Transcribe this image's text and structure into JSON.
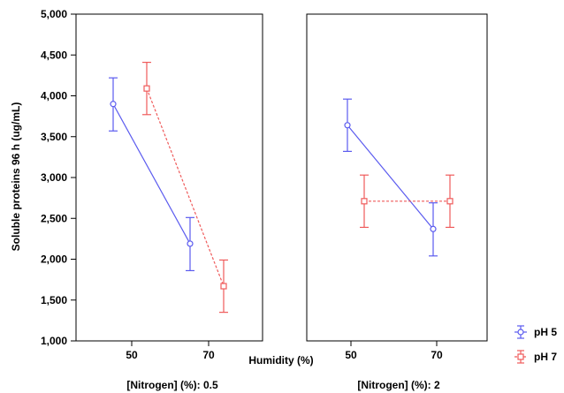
{
  "chart_data": {
    "type": "line",
    "ylabel": "Soluble proteins 96 h (ug/mL)",
    "xlabel": "Humidity (%)",
    "ylim": [
      1000,
      5000
    ],
    "yticks": [
      "1,000",
      "1,500",
      "2,000",
      "2,500",
      "3,000",
      "3,500",
      "4,000",
      "4,500",
      "5,000"
    ],
    "ytick_values": [
      1000,
      1500,
      2000,
      2500,
      3000,
      3500,
      4000,
      4500,
      5000
    ],
    "categories": [
      "50",
      "70"
    ],
    "legend_position": "bottom-right",
    "colors": {
      "pH 5": "#5b5bef",
      "pH 7": "#ef5b5b"
    },
    "panels": [
      {
        "label": "[Nitrogen] (%): 0.5",
        "series": [
          {
            "name": "pH 5",
            "values": [
              3900,
              2190
            ],
            "lower": [
              3570,
              1860
            ],
            "upper": [
              4220,
              2510
            ]
          },
          {
            "name": "pH 7",
            "values": [
              4090,
              1670
            ],
            "lower": [
              3770,
              1350
            ],
            "upper": [
              4410,
              1990
            ]
          }
        ]
      },
      {
        "label": "[Nitrogen] (%): 2",
        "series": [
          {
            "name": "pH 5",
            "values": [
              3640,
              2370
            ],
            "lower": [
              3320,
              2040
            ],
            "upper": [
              3960,
              2690
            ]
          },
          {
            "name": "pH 7",
            "values": [
              2710,
              2710
            ],
            "lower": [
              2390,
              2390
            ],
            "upper": [
              3030,
              3030
            ]
          }
        ]
      }
    ]
  }
}
